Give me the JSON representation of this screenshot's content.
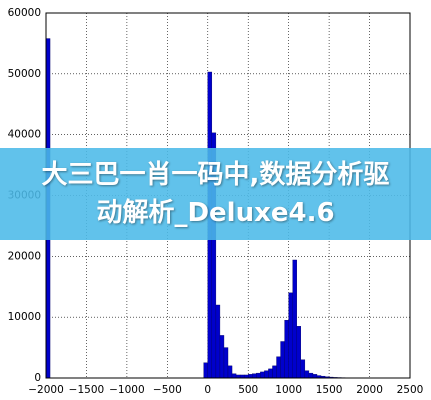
{
  "chart_data": {
    "type": "histogram",
    "bins": [
      -2000,
      -1950,
      -1900,
      -1850,
      -1800,
      -1750,
      -1700,
      -1650,
      -1600,
      -1550,
      -1500,
      -1450,
      -1400,
      -1350,
      -1300,
      -1250,
      -1200,
      -1150,
      -1100,
      -1050,
      -1000,
      -950,
      -900,
      -850,
      -800,
      -750,
      -700,
      -650,
      -600,
      -550,
      -500,
      -450,
      -400,
      -350,
      -300,
      -250,
      -200,
      -150,
      -100,
      -50,
      0,
      50,
      100,
      150,
      200,
      250,
      300,
      350,
      400,
      450,
      500,
      550,
      600,
      650,
      700,
      750,
      800,
      850,
      900,
      950,
      1000,
      1050,
      1100,
      1150,
      1200,
      1250,
      1300,
      1350,
      1400,
      1450,
      1500,
      1550,
      1600,
      1650,
      1700,
      1750,
      1800,
      1850,
      1900,
      1950,
      2000,
      2050,
      2100,
      2150,
      2200,
      2250,
      2300,
      2350,
      2400,
      2450,
      2500
    ],
    "values": [
      55800,
      0,
      0,
      0,
      0,
      0,
      0,
      0,
      0,
      0,
      0,
      0,
      0,
      0,
      0,
      0,
      0,
      0,
      0,
      0,
      0,
      0,
      0,
      0,
      0,
      0,
      0,
      0,
      0,
      0,
      0,
      0,
      0,
      0,
      0,
      0,
      0,
      0,
      0,
      2500,
      50300,
      40300,
      12000,
      7000,
      5000,
      2000,
      700,
      500,
      500,
      500,
      600,
      700,
      800,
      1000,
      1200,
      1500,
      2000,
      3500,
      6000,
      9500,
      14000,
      19400,
      8500,
      3000,
      1200,
      800,
      600,
      400,
      300,
      200,
      150,
      100,
      80,
      60,
      40,
      30,
      20,
      10,
      0,
      0,
      0,
      0,
      0,
      0,
      0,
      0,
      0,
      0,
      0,
      0
    ],
    "color": "#0000cc",
    "xlim": [
      -2000,
      2500
    ],
    "xticks": [
      {
        "value": -2000,
        "label": "−2000"
      },
      {
        "value": -1500,
        "label": "−1500"
      },
      {
        "value": -1000,
        "label": "−1000"
      },
      {
        "value": -500,
        "label": "−500"
      },
      0,
      500,
      1000,
      1500,
      2000,
      2500
    ],
    "ylim": [
      0,
      60000
    ],
    "yticks": [
      0,
      10000,
      20000,
      30000,
      40000,
      50000,
      60000
    ],
    "grid": true
  },
  "banner": {
    "text": "大三巴一肖一码中,数据分析驱动解析_Deluxe4.6"
  }
}
